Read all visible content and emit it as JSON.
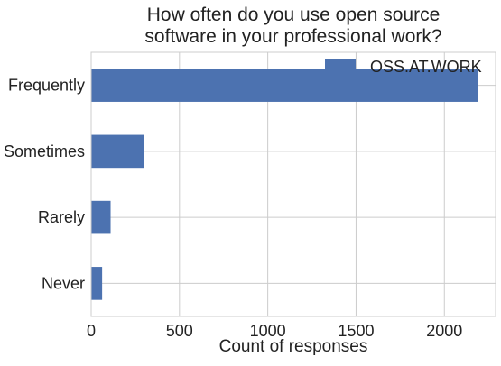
{
  "chart_data": {
    "type": "bar",
    "orientation": "horizontal",
    "title": "How often do you use open source\nsoftware in your professional work?",
    "xlabel": "Count of responses",
    "ylabel": "",
    "categories": [
      "Never",
      "Rarely",
      "Sometimes",
      "Frequently"
    ],
    "series": [
      {
        "name": "OSS.AT.WORK",
        "values": [
          62,
          110,
          300,
          2190
        ]
      }
    ],
    "xlim": [
      0,
      2290
    ],
    "xticks": [
      0,
      500,
      1000,
      1500,
      2000
    ],
    "grid": true,
    "legend_position": "top-right",
    "colors": {
      "bar": "#4c72b0",
      "grid": "#cccccc",
      "axis_text": "#222222"
    }
  }
}
